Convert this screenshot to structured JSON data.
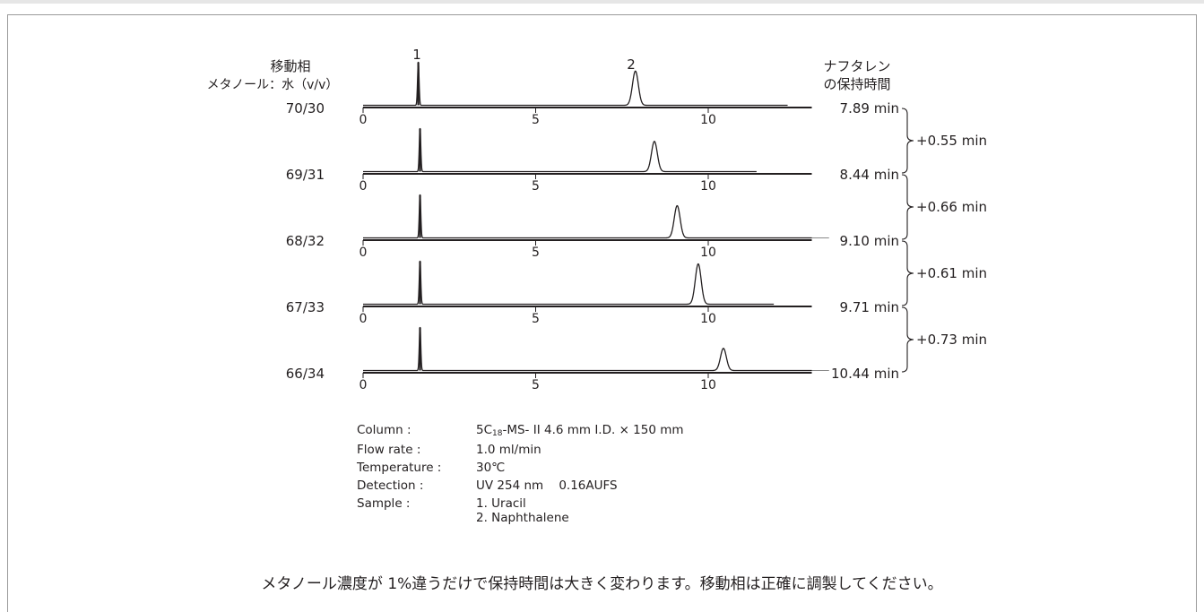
{
  "header": {
    "mobile_phase_title": "移動相",
    "mobile_phase_subtitle": "メタノール：水（v/v）",
    "retention_title_1": "ナフタレン",
    "retention_title_2": "の保持時間"
  },
  "peak_labels": [
    "1",
    "2"
  ],
  "chart_data": {
    "type": "line",
    "xlim": [
      0,
      13
    ],
    "x_ticks": [
      0,
      5,
      10
    ],
    "x_tick_labels": [
      "0",
      "5",
      "10"
    ],
    "grid": false,
    "peaks": [
      {
        "label": "1",
        "compound": "1. Uracil"
      },
      {
        "label": "2",
        "compound": "2. Naphthalene"
      }
    ],
    "series": [
      {
        "mobile_phase": "70/30",
        "peak1_rt": 1.6,
        "peak2_rt": 7.89,
        "peak2_rel_height": 0.85,
        "trace_end": 12.3,
        "retention_label": "7.89 min"
      },
      {
        "mobile_phase": "69/31",
        "peak1_rt": 1.65,
        "peak2_rt": 8.44,
        "peak2_rel_height": 0.75,
        "trace_end": 11.4,
        "retention_label": "8.44 min"
      },
      {
        "mobile_phase": "68/32",
        "peak1_rt": 1.65,
        "peak2_rt": 9.1,
        "peak2_rel_height": 0.8,
        "trace_end": 13.5,
        "retention_label": "9.10 min"
      },
      {
        "mobile_phase": "67/33",
        "peak1_rt": 1.65,
        "peak2_rt": 9.71,
        "peak2_rel_height": 1.0,
        "trace_end": 11.9,
        "retention_label": "9.71 min"
      },
      {
        "mobile_phase": "66/34",
        "peak1_rt": 1.65,
        "peak2_rt": 10.44,
        "peak2_rel_height": 0.55,
        "trace_end": 13.5,
        "retention_label": "10.44 min"
      }
    ],
    "differences": [
      "+0.55 min",
      "+0.66 min",
      "+0.61 min",
      "+0.73 min"
    ]
  },
  "conditions": {
    "column_label": "Column :",
    "column_value_pre": "5C",
    "column_value_sub": "18",
    "column_value_post": "-MS- II  4.6 mm I.D. × 150 mm",
    "flow_label": "Flow rate :",
    "flow_value": "1.0 ml/min",
    "temp_label": "Temperature :",
    "temp_value": "30℃",
    "detect_label": "Detection :",
    "detect_value": "UV 254 nm    0.16AUFS",
    "sample_label": "Sample :",
    "sample_1": "1. Uracil",
    "sample_2": "2. Naphthalene"
  },
  "footer": "メタノール濃度が 1%違うだけで保持時間は大きく変わります。移動相は正確に調製してください。"
}
